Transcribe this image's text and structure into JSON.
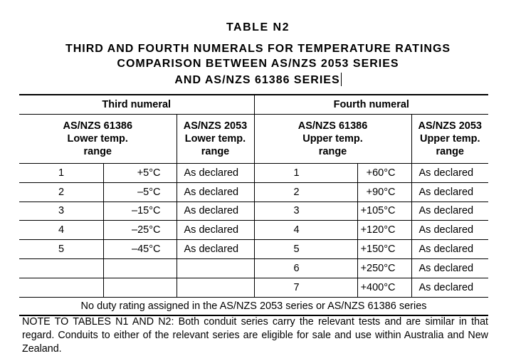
{
  "title": {
    "table_label": "TABLE   N2",
    "line1": "THIRD AND FOURTH NUMERALS FOR TEMPERATURE RATINGS",
    "line2": "COMPARISON BETWEEN AS/NZS 2053 SERIES",
    "line3": "AND AS/NZS 61386 SERIES"
  },
  "table": {
    "group_third": "Third numeral",
    "group_fourth": "Fourth numeral",
    "col_61386_lower": [
      "AS/NZS 61386",
      "Lower temp.",
      "range"
    ],
    "col_2053_lower": [
      "AS/NZS 2053",
      "Lower temp.",
      "range"
    ],
    "col_61386_upper": [
      "AS/NZS 61386",
      "Upper temp.",
      "range"
    ],
    "col_2053_upper": [
      "AS/NZS 2053",
      "Upper temp.",
      "range"
    ],
    "rows": [
      [
        "1",
        "+5°C",
        "As declared",
        "1",
        "+60°C",
        "As declared"
      ],
      [
        "2",
        "–5°C",
        "As declared",
        "2",
        "+90°C",
        "As declared"
      ],
      [
        "3",
        "–15°C",
        "As declared",
        "3",
        "+105°C",
        "As declared"
      ],
      [
        "4",
        "–25°C",
        "As declared",
        "4",
        "+120°C",
        "As declared"
      ],
      [
        "5",
        "–45°C",
        "As declared",
        "5",
        "+150°C",
        "As declared"
      ],
      [
        "",
        "",
        "",
        "6",
        "+250°C",
        "As declared"
      ],
      [
        "",
        "",
        "",
        "7",
        "+400°C",
        "As declared"
      ]
    ],
    "footer": "No duty rating assigned in the AS/NZS 2053 series or AS/NZS 61386 series"
  },
  "note": "NOTE TO TABLES N1 AND N2: Both conduit series carry the relevant tests and are similar in that regard. Conduits to either of the relevant series are eligible for sale and use within Australia and New Zealand."
}
